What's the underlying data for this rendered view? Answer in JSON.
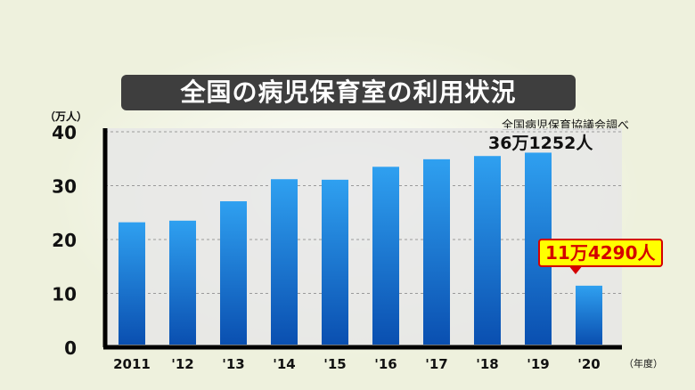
{
  "header": {
    "title": "全国の病児保育室の利用状況",
    "source": "全国病児保育協議会調べ",
    "y_unit": "（万人）",
    "x_unit": "（年度）"
  },
  "annotations": {
    "top": "36万1252人",
    "callout": "11万4290人"
  },
  "colors": {
    "bar_top": "#2fa0f0",
    "bar_bottom": "#0a4fb0",
    "callout_text": "#d40000",
    "callout_bg": "#ffff00"
  },
  "chart_data": {
    "type": "bar",
    "categories": [
      "2011",
      "'12",
      "'13",
      "'14",
      "'15",
      "'16",
      "'17",
      "'18",
      "'19",
      "'20"
    ],
    "values": [
      23.2,
      23.5,
      27.1,
      31.2,
      31.1,
      33.5,
      34.9,
      35.5,
      36.1252,
      11.429
    ],
    "yticks": [
      0,
      10,
      20,
      30,
      40
    ],
    "ylim": [
      0,
      40
    ],
    "grid": true
  }
}
